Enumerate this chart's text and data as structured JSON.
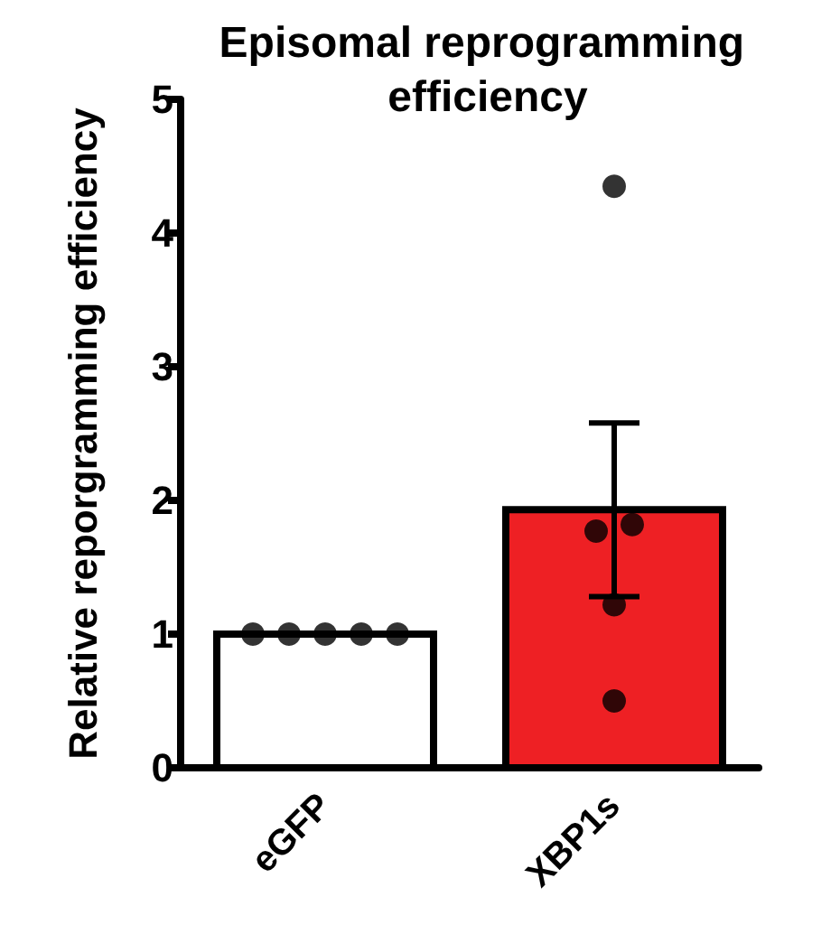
{
  "chart_data": {
    "type": "bar",
    "title": "Episomal reprogramming efficiency",
    "ylabel": "Relative reporgramming efficiency",
    "categories": [
      "eGFP",
      "XBP1s"
    ],
    "series": [
      {
        "type": "bar",
        "values": [
          1,
          1.93
        ],
        "colors": [
          "#ffffff",
          "#ee2024"
        ],
        "errors": [
          null,
          [
            1.28,
            2.58
          ]
        ]
      },
      {
        "type": "scatter",
        "x": [
          "eGFP",
          "eGFP",
          "eGFP",
          "eGFP",
          "eGFP",
          "XBP1s",
          "XBP1s",
          "XBP1s",
          "XBP1s",
          "XBP1s"
        ],
        "values": [
          1,
          1,
          1,
          1,
          1,
          4.35,
          1.77,
          1.82,
          1.22,
          0.5
        ],
        "color": "#000000"
      }
    ],
    "ylim": [
      0,
      5
    ],
    "yticks": [
      0,
      1,
      2,
      3,
      4,
      5
    ],
    "grid": false,
    "marker": "circle"
  }
}
